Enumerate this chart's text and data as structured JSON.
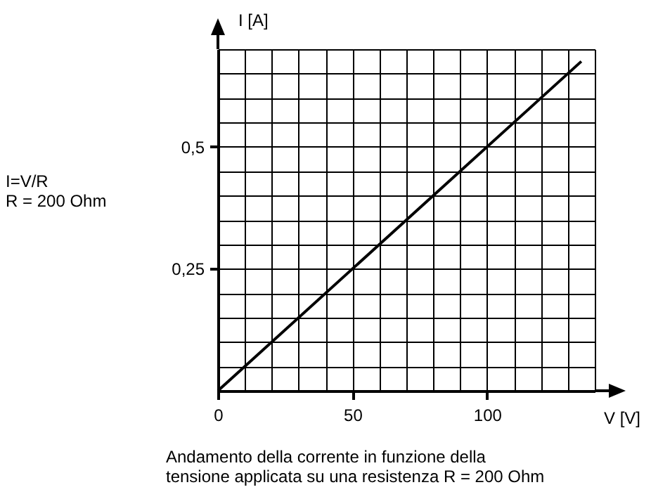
{
  "chart_data": {
    "type": "line",
    "xlabel": "V [V]",
    "ylabel": "I [A]",
    "x": [
      0,
      135
    ],
    "series": [
      {
        "color": "#000000",
        "values": [
          0,
          0.675
        ]
      }
    ],
    "xlim": [
      0,
      140
    ],
    "ylim": [
      0,
      0.7
    ],
    "xticks": [
      0,
      {
        "value": 10,
        "label": null
      },
      {
        "value": 20,
        "label": null
      },
      {
        "value": 30,
        "label": null
      },
      {
        "value": 40,
        "label": null
      },
      50,
      {
        "value": 60,
        "label": null
      },
      {
        "value": 70,
        "label": null
      },
      {
        "value": 80,
        "label": null
      },
      {
        "value": 90,
        "label": null
      },
      100,
      {
        "value": 110,
        "label": null
      },
      {
        "value": 120,
        "label": null
      },
      {
        "value": 130,
        "label": null
      },
      {
        "value": 140,
        "label": null
      }
    ],
    "yticks": [
      {
        "value": 0,
        "label": null
      },
      {
        "value": 0.05,
        "label": null
      },
      {
        "value": 0.1,
        "label": null
      },
      {
        "value": 0.15,
        "label": null
      },
      {
        "value": 0.2,
        "label": null
      },
      {
        "value": 0.25,
        "label": "0,25"
      },
      {
        "value": 0.3,
        "label": null
      },
      {
        "value": 0.35,
        "label": null
      },
      {
        "value": 0.4,
        "label": null
      },
      {
        "value": 0.45,
        "label": null
      },
      {
        "value": 0.5,
        "label": "0,5"
      },
      {
        "value": 0.55,
        "label": null
      },
      {
        "value": 0.6,
        "label": null
      },
      {
        "value": 0.65,
        "label": null
      },
      {
        "value": 0.7,
        "label": null
      }
    ],
    "grid": true,
    "marker": "none",
    "line_style": "solid",
    "annotations": [
      "I=V/R\nR = 200 Ohm",
      "Andamento della corrente in funzione della\ntensione applicata su una resistenza R = 200 Ohm"
    ]
  }
}
